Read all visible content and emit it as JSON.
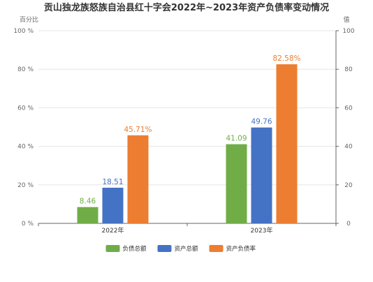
{
  "chart_data": {
    "type": "bar",
    "title": "贡山独龙族怒族自治县红十字会2022年~2023年资产负债率变动情况",
    "left_axis_name": "百分比",
    "right_axis_name": "值",
    "categories": [
      "2022年",
      "2023年"
    ],
    "left_ticks": [
      "0 %",
      "20 %",
      "40 %",
      "60 %",
      "80 %",
      "100 %"
    ],
    "right_ticks": [
      "0",
      "20",
      "40",
      "60",
      "80",
      "100"
    ],
    "ylim": [
      0,
      100
    ],
    "grid": true,
    "legend_position": "bottom",
    "series": [
      {
        "name": "负债总额",
        "values": [
          8.46,
          41.09
        ],
        "labels": [
          "8.46",
          "41.09"
        ],
        "color": "#70ad47",
        "axis": "right"
      },
      {
        "name": "资产总额",
        "values": [
          18.51,
          49.76
        ],
        "labels": [
          "18.51",
          "49.76"
        ],
        "color": "#4472c4",
        "axis": "right"
      },
      {
        "name": "资产负债率",
        "values": [
          45.71,
          82.58
        ],
        "labels": [
          "45.71%",
          "82.58%"
        ],
        "color": "#ed7d31",
        "axis": "left"
      }
    ]
  }
}
